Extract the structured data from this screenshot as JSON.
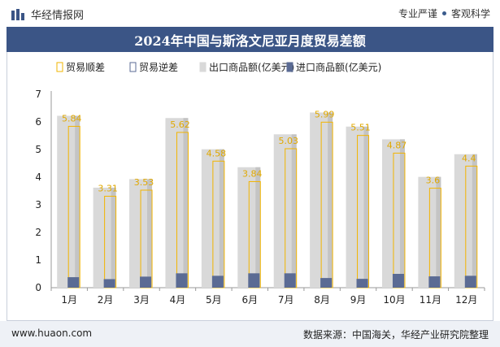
{
  "header": {
    "brand": "华经情报网",
    "tagline_left": "专业严谨",
    "tagline_right": "客观科学"
  },
  "title": "2024年中国与斯洛文尼亚月度贸易差额",
  "footer": {
    "website": "www.huaon.com",
    "source": "数据来源：中国海关，华经产业研究院整理"
  },
  "colors": {
    "title_bg": "#3b5586",
    "surplus": "#f2b400",
    "export": "#d9d9d9",
    "import": "#5b6b94"
  },
  "chart_data": {
    "type": "bar",
    "title": "2024年中国与斯洛文尼亚月度贸易差额",
    "categories": [
      "1月",
      "2月",
      "3月",
      "4月",
      "5月",
      "6月",
      "7月",
      "8月",
      "9月",
      "10月",
      "11月",
      "12月"
    ],
    "legend": [
      "贸易顺差",
      "贸易逆差",
      "出口商品额(亿美元)",
      "进口商品额(亿美元)"
    ],
    "ylim": [
      0,
      7
    ],
    "yticks": [
      0,
      1,
      2,
      3,
      4,
      5,
      6,
      7
    ],
    "series": [
      {
        "name": "出口商品额(亿美元)",
        "values": [
          6.22,
          3.62,
          3.93,
          6.14,
          5.01,
          4.36,
          5.55,
          6.34,
          5.83,
          5.37,
          4.01,
          4.83
        ]
      },
      {
        "name": "进口商品额(亿美元)",
        "values": [
          0.38,
          0.31,
          0.4,
          0.52,
          0.43,
          0.52,
          0.52,
          0.35,
          0.32,
          0.5,
          0.41,
          0.43
        ]
      },
      {
        "name": "贸易顺差",
        "values": [
          5.84,
          3.31,
          3.53,
          5.62,
          4.58,
          3.84,
          5.03,
          5.99,
          5.51,
          4.87,
          3.6,
          4.4
        ]
      },
      {
        "name": "贸易逆差",
        "values": [
          0,
          0,
          0,
          0,
          0,
          0,
          0,
          0,
          0,
          0,
          0,
          0
        ]
      }
    ],
    "data_labels": [
      "5.84",
      "3.31",
      "3.53",
      "5.62",
      "4.58",
      "3.84",
      "5.03",
      "5.99",
      "5.51",
      "4.87",
      "3.6",
      "4.4"
    ],
    "grid": false,
    "legend_position": "top"
  }
}
